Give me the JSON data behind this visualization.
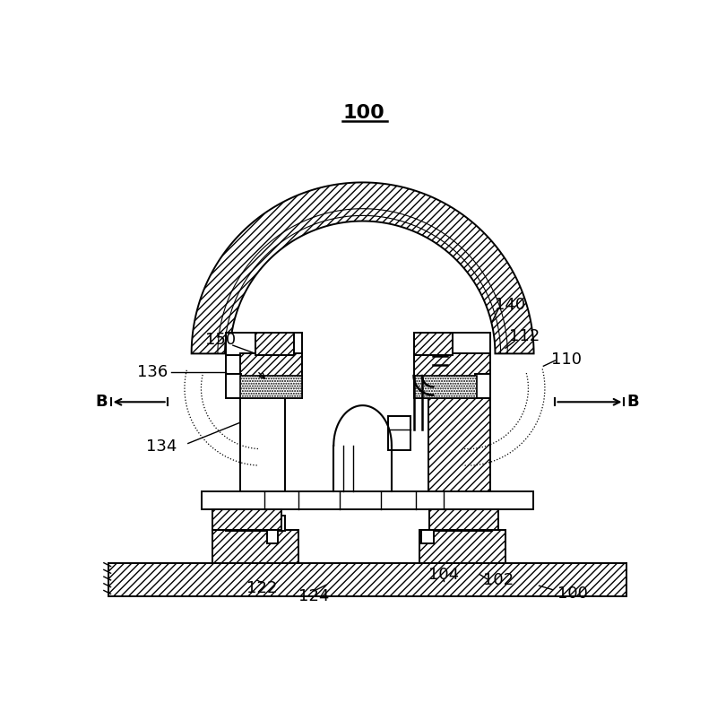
{
  "bg_color": "#ffffff",
  "fig_width": 8.0,
  "fig_height": 7.84,
  "dpi": 100,
  "title": "100",
  "lw": 1.4
}
